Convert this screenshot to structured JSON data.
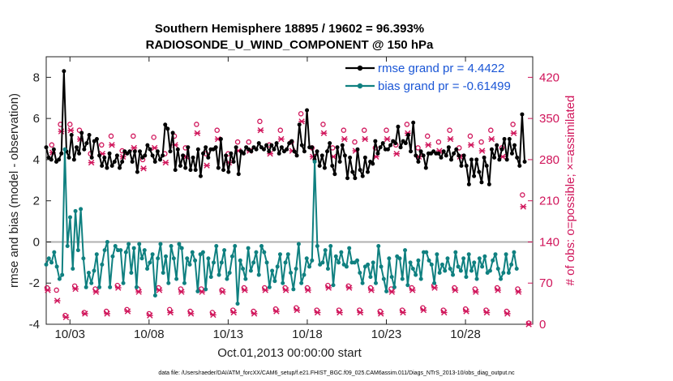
{
  "chart_data": {
    "type": "line",
    "title_line1": "Southern Hemisphere 18895 / 19602 = 96.393%",
    "title_line2": "RADIOSONDE_U_WIND_COMPONENT @ 150 hPa",
    "xlabel": "Oct.01,2013 00:00:00 start",
    "ylabel": "rmse and bias (model - observation)",
    "ylabel_right": "# of obs: o=possible; ×=assimilated",
    "xlim": [
      1.5,
      32.25
    ],
    "ylim": [
      -4,
      9
    ],
    "ylim_right": [
      0,
      455
    ],
    "x_tick_values": [
      3,
      8,
      13,
      18,
      23,
      28
    ],
    "x_tick_labels": [
      "10/03",
      "10/08",
      "10/13",
      "10/18",
      "10/23",
      "10/28"
    ],
    "y_tick_values": [
      -4,
      -2,
      0,
      2,
      4,
      6,
      8
    ],
    "y_tick_labels": [
      "-4",
      "-2",
      "0",
      "2",
      "4",
      "6",
      "8"
    ],
    "y_right_tick_values": [
      0,
      70,
      140,
      210,
      280,
      350,
      420
    ],
    "y_right_tick_labels": [
      "0",
      "70",
      "140",
      "210",
      "280",
      "350",
      "420"
    ],
    "colors": {
      "rmse": "#000000",
      "bias": "#0f8080",
      "obs": "#d0145a",
      "zero_line": "#b0b0b0",
      "legend_text": "#1a56d6"
    },
    "series": [
      {
        "name": "rmse",
        "legend": "rmse grand pr = 4.4422",
        "values": [
          4.6,
          4.1,
          4.0,
          4.5,
          3.9,
          4.0,
          4.3,
          8.3,
          4.4,
          4.1,
          5.2,
          4.0,
          4.6,
          4.3,
          5.3,
          4.5,
          4.8,
          5.2,
          4.1,
          4.9,
          5.0,
          4.2,
          3.7,
          4.1,
          3.6,
          4.3,
          3.7,
          3.9,
          4.2,
          3.6,
          3.9,
          4.4,
          4.3,
          4.4,
          3.9,
          4.4,
          3.4,
          4.4,
          4.1,
          4.2,
          4.7,
          4.5,
          4.2,
          3.9,
          4.4,
          4.0,
          4.2,
          5.7,
          5.5,
          4.4,
          5.3,
          3.5,
          4.5,
          3.7,
          4.2,
          3.6,
          4.6,
          3.5,
          4.1,
          3.5,
          4.5,
          3.2,
          4.3,
          4.6,
          4.1,
          4.5,
          4.5,
          4.6,
          3.6,
          5.0,
          3.5,
          4.2,
          3.4,
          4.3,
          3.9,
          4.6,
          3.3,
          4.4,
          4.3,
          4.6,
          4.5,
          4.4,
          4.6,
          4.5,
          4.8,
          4.6,
          4.5,
          4.7,
          4.4,
          4.7,
          4.5,
          4.8,
          4.3,
          4.6,
          4.4,
          4.5,
          4.8,
          4.9,
          4.4,
          4.2,
          5.7,
          4.7,
          4.4,
          6.4,
          4.6,
          4.6,
          4.0,
          4.4,
          3.7,
          4.2,
          3.6,
          4.4,
          4.8,
          3.7,
          3.3,
          4.6,
          3.9,
          4.7,
          4.2,
          3.1,
          4.1,
          3.4,
          3.1,
          4.5,
          3.5,
          3.2,
          4.1,
          3.4,
          3.9,
          3.8,
          4.9,
          4.3,
          4.6,
          4.8,
          4.5,
          4.5,
          4.7,
          4.9,
          4.8,
          5.6,
          4.6,
          4.9,
          4.8,
          5.2,
          4.4,
          5.8,
          4.2,
          3.9,
          4.4,
          4.2,
          3.6,
          4.3,
          4.3,
          4.4,
          4.3,
          4.3,
          4.1,
          4.4,
          4.2,
          4.6,
          4.0,
          4.3,
          4.5,
          4.2,
          3.7,
          4.2,
          3.7,
          2.8,
          4.0,
          3.2,
          4.0,
          3.4,
          2.9,
          4.1,
          3.7,
          2.8,
          4.5,
          4.1,
          4.7,
          4.0,
          4.5,
          5.0,
          4.0,
          5.0,
          4.3,
          4.7,
          4.1,
          3.7,
          6.2,
          3.9
        ],
        "x_start": 1.5,
        "x_step": 0.16
      },
      {
        "name": "bias",
        "legend": "bias grand pr = -0.61499",
        "values": [
          -1.1,
          -0.8,
          -1.0,
          -0.5,
          -1.2,
          -1.8,
          -1.6,
          4.5,
          -0.2,
          1.2,
          -1.3,
          1.5,
          -0.4,
          1.6,
          -0.8,
          -2.2,
          -1.5,
          -2.0,
          -1.4,
          -0.6,
          -2.2,
          -1.1,
          -0.4,
          0.0,
          -2.2,
          -0.7,
          -0.2,
          -0.4,
          -0.4,
          -2.0,
          -0.5,
          -0.1,
          -1.5,
          -0.3,
          -2.2,
          -0.1,
          -0.8,
          -0.4,
          -1.3,
          -1.0,
          -0.6,
          -2.6,
          -0.8,
          -0.1,
          -1.5,
          -0.7,
          -2.0,
          -0.2,
          -0.8,
          -1.8,
          -0.1,
          -0.3,
          -2.0,
          -0.8,
          -1.1,
          -0.5,
          -0.9,
          -2.4,
          -0.6,
          -0.5,
          -2.3,
          -0.8,
          -1.7,
          -1.0,
          -0.2,
          -1.6,
          -1.0,
          -0.4,
          -1.8,
          -1.5,
          -0.7,
          -0.2,
          -3.0,
          -0.9,
          -1.3,
          -1.8,
          -0.3,
          -1.4,
          -1.0,
          -0.5,
          -1.6,
          -0.2,
          -0.5,
          -1.0,
          -2.2,
          -1.4,
          -1.9,
          -1.2,
          -0.6,
          -2.0,
          -1.0,
          -0.6,
          -1.5,
          -2.3,
          -1.3,
          -0.1,
          -2.0,
          -1.6,
          -0.8,
          -1.2,
          -0.9,
          3.9,
          -0.2,
          -1.1,
          -1.0,
          -0.4,
          -1.3,
          -0.2,
          -2.1,
          -0.7,
          -1.0,
          -0.5,
          -1.1,
          -1.2,
          -0.3,
          -1.0,
          -1.0,
          -0.9,
          -1.5,
          -2.0,
          -1.2,
          -1.1,
          -1.7,
          -1.0,
          -2.0,
          -0.2,
          -1.2,
          -1.8,
          -2.4,
          -0.8,
          -1.7,
          -2.2,
          -0.7,
          -0.8,
          -1.8,
          -0.4,
          -2.1,
          -1.0,
          -1.3,
          -1.6,
          -0.9,
          -1.8,
          -0.5,
          -0.5,
          -0.9,
          -1.1,
          -2.0,
          -0.6,
          -1.5,
          -1.1,
          -1.4,
          -0.8,
          -1.3,
          -1.6,
          -0.5,
          -1.2,
          -1.4,
          -0.8,
          -1.7,
          -0.6,
          -1.4,
          -1.0,
          -1.8,
          -0.8,
          -1.2,
          -0.7,
          -1.5,
          -1.4,
          -0.9,
          -0.6,
          -1.3,
          -1.8,
          -1.5,
          -0.6,
          -1.5,
          -1.1,
          -0.5,
          -1.3
        ],
        "x_start": 1.5,
        "x_step": 0.168
      }
    ],
    "obs_possible": {
      "x": [
        1.55,
        1.85,
        2.15,
        2.4,
        2.7,
        3.0,
        3.3,
        3.6,
        3.9,
        4.3,
        4.6,
        5.0,
        5.3,
        5.6,
        6.0,
        6.3,
        6.6,
        7.0,
        7.3,
        7.6,
        8.0,
        8.3,
        8.6,
        9.0,
        9.3,
        9.6,
        10.0,
        10.3,
        10.6,
        11.0,
        11.3,
        11.6,
        12.0,
        12.3,
        12.6,
        13.0,
        13.3,
        13.6,
        14.0,
        14.3,
        14.6,
        15.0,
        15.3,
        15.6,
        16.0,
        16.3,
        16.6,
        17.0,
        17.3,
        17.6,
        18.0,
        18.3,
        18.6,
        19.0,
        19.3,
        19.6,
        20.0,
        20.3,
        20.6,
        21.0,
        21.3,
        21.6,
        22.0,
        22.3,
        22.6,
        23.0,
        23.3,
        23.6,
        24.0,
        24.3,
        24.6,
        25.0,
        25.3,
        25.6,
        26.0,
        26.3,
        26.6,
        27.0,
        27.3,
        27.6,
        28.0,
        28.3,
        28.6,
        29.0,
        29.3,
        29.6,
        30.0,
        30.3,
        30.6,
        31.0,
        31.3,
        31.6,
        32.0
      ],
      "y": [
        62,
        305,
        58,
        340,
        15,
        340,
        65,
        330,
        20,
        290,
        60,
        305,
        22,
        320,
        66,
        295,
        25,
        320,
        60,
        280,
        18,
        318,
        62,
        290,
        25,
        320,
        60,
        300,
        22,
        340,
        60,
        290,
        20,
        330,
        58,
        290,
        24,
        310,
        62,
        310,
        22,
        345,
        62,
        305,
        26,
        330,
        62,
        310,
        28,
        358,
        62,
        300,
        24,
        340,
        66,
        300,
        24,
        330,
        65,
        310,
        24,
        330,
        62,
        300,
        22,
        330,
        60,
        305,
        24,
        340,
        62,
        300,
        28,
        320,
        66,
        310,
        24,
        330,
        62,
        300,
        26,
        320,
        60,
        310,
        24,
        330,
        62,
        300,
        22,
        340,
        60,
        220,
        2
      ]
    },
    "obs_assimilated": {
      "x": [
        1.6,
        1.9,
        2.2,
        2.45,
        2.75,
        3.05,
        3.35,
        3.65,
        3.95,
        4.35,
        4.65,
        5.05,
        5.35,
        5.65,
        6.05,
        6.35,
        6.65,
        7.05,
        7.35,
        7.65,
        8.05,
        8.35,
        8.65,
        9.05,
        9.35,
        9.65,
        10.05,
        10.35,
        10.65,
        11.05,
        11.35,
        11.65,
        12.05,
        12.35,
        12.65,
        13.05,
        13.35,
        13.65,
        14.05,
        14.35,
        14.65,
        15.05,
        15.35,
        15.65,
        16.05,
        16.35,
        16.65,
        17.05,
        17.35,
        17.65,
        18.05,
        18.35,
        18.65,
        19.05,
        19.35,
        19.65,
        20.05,
        20.35,
        20.65,
        21.05,
        21.35,
        21.65,
        22.05,
        22.35,
        22.65,
        23.05,
        23.35,
        23.65,
        24.05,
        24.35,
        24.65,
        25.05,
        25.35,
        25.65,
        26.05,
        26.35,
        26.65,
        27.05,
        27.35,
        27.65,
        28.05,
        28.35,
        28.65,
        29.05,
        29.35,
        29.65,
        30.05,
        30.35,
        30.65,
        31.05,
        31.35,
        31.65,
        32.0
      ],
      "y": [
        58,
        292,
        40,
        328,
        12,
        330,
        60,
        315,
        18,
        275,
        55,
        290,
        18,
        305,
        62,
        285,
        22,
        300,
        55,
        265,
        15,
        300,
        58,
        275,
        20,
        305,
        55,
        285,
        18,
        325,
        55,
        270,
        16,
        315,
        55,
        275,
        20,
        295,
        58,
        295,
        18,
        330,
        58,
        290,
        22,
        315,
        58,
        295,
        24,
        345,
        58,
        285,
        20,
        325,
        62,
        285,
        20,
        315,
        62,
        295,
        20,
        315,
        58,
        285,
        18,
        315,
        55,
        290,
        20,
        325,
        58,
        285,
        24,
        305,
        62,
        295,
        20,
        315,
        58,
        285,
        22,
        305,
        55,
        295,
        20,
        315,
        58,
        285,
        18,
        325,
        55,
        200,
        0
      ]
    }
  },
  "footer": "data file: /Users/raeder/DAI/ATM_forcXX/CAM6_setup/f.e21.FHIST_BGC.f09_025.CAM6assim.011/Diags_NTrS_2013-10/obs_diag_output.nc"
}
